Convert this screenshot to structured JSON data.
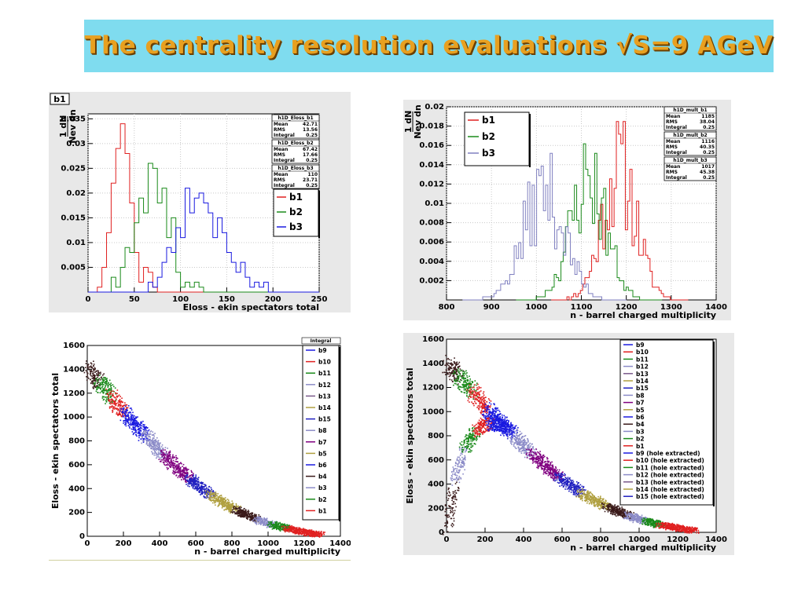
{
  "slide": {
    "title": "The centrality resolution evaluations √S=9 AGeV",
    "colors": {
      "banner_bg": "#7fdcef",
      "title_fill": "#e8a020",
      "title_shadow": "#6b3f00"
    }
  },
  "chart_data": [
    {
      "id": "top-left",
      "type": "step-histogram",
      "tag": "b1",
      "ylabel": "1/Nev dN/dn",
      "xlabel": "Eloss - ekin spectators total",
      "xlim": [
        0,
        250
      ],
      "ylim": [
        0,
        0.036
      ],
      "xticks": [
        0,
        50,
        100,
        150,
        200,
        250
      ],
      "yticks": [
        0.005,
        0.01,
        0.015,
        0.02,
        0.025,
        0.03,
        0.035
      ],
      "grid": true,
      "stats": [
        {
          "title": "h1D_Eloss_b1",
          "rows": [
            [
              "Mean",
              "42.71"
            ],
            [
              "RMS",
              "13.56"
            ],
            [
              "Integral",
              "0.25"
            ]
          ]
        },
        {
          "title": "h1D_Eloss_b2",
          "rows": [
            [
              "Mean",
              "67.42"
            ],
            [
              "RMS",
              "17.66"
            ],
            [
              "Integral",
              "0.25"
            ]
          ]
        },
        {
          "title": "h1D_Eloss_b3",
          "rows": [
            [
              "Mean",
              "110"
            ],
            [
              "RMS",
              "23.71"
            ],
            [
              "Integral",
              "0.25"
            ]
          ]
        }
      ],
      "legend": {
        "position": "right",
        "entries": [
          "b1",
          "b2",
          "b3"
        ]
      },
      "series": [
        {
          "name": "b1",
          "color": "#e02020",
          "bin_width": 5,
          "x0": 0,
          "values": [
            0,
            0,
            0.001,
            0.005,
            0.012,
            0.022,
            0.029,
            0.034,
            0.028,
            0.018,
            0.008,
            0.002,
            0.005,
            0.004,
            0.001,
            0,
            0,
            0,
            0,
            0,
            0,
            0,
            0,
            0,
            0,
            0,
            0,
            0,
            0,
            0,
            0,
            0,
            0,
            0,
            0,
            0,
            0,
            0,
            0,
            0,
            0,
            0,
            0,
            0,
            0,
            0,
            0,
            0,
            0,
            0
          ]
        },
        {
          "name": "b2",
          "color": "#1a8a1a",
          "bin_width": 5,
          "x0": 0,
          "values": [
            0,
            0,
            0,
            0,
            0,
            0.003,
            0.001,
            0.005,
            0.009,
            0.008,
            0.014,
            0.019,
            0.016,
            0.026,
            0.025,
            0.018,
            0.021,
            0.011,
            0.015,
            0.004,
            0.001,
            0.002,
            0.001,
            0.002,
            0.001,
            0,
            0,
            0,
            0,
            0,
            0,
            0,
            0,
            0,
            0,
            0,
            0,
            0,
            0,
            0,
            0,
            0,
            0,
            0,
            0,
            0,
            0,
            0,
            0,
            0
          ]
        },
        {
          "name": "b3",
          "color": "#1a1ae0",
          "bin_width": 5,
          "x0": 0,
          "values": [
            0,
            0,
            0,
            0,
            0,
            0,
            0,
            0,
            0,
            0,
            0,
            0,
            0,
            0.002,
            0.001,
            0.003,
            0.006,
            0.009,
            0.008,
            0.013,
            0.011,
            0.021,
            0.016,
            0.019,
            0.02,
            0.018,
            0.016,
            0.011,
            0.015,
            0.012,
            0.008,
            0.006,
            0.004,
            0.006,
            0.003,
            0.001,
            0.002,
            0.001,
            0.002,
            0,
            0,
            0,
            0,
            0,
            0,
            0,
            0,
            0,
            0,
            0
          ]
        }
      ]
    },
    {
      "id": "top-right",
      "type": "step-histogram",
      "ylabel": "1/Nev dN/dn",
      "xlabel": "n - barrel charged multiplicity",
      "xlim": [
        800,
        1400
      ],
      "ylim": [
        0,
        0.02
      ],
      "xticks": [
        800,
        900,
        1000,
        1100,
        1200,
        1300,
        1400
      ],
      "yticks": [
        0.002,
        0.004,
        0.006,
        0.008,
        0.01,
        0.012,
        0.014,
        0.016,
        0.018,
        0.02
      ],
      "grid": true,
      "stats": [
        {
          "title": "h1D_mult_b1",
          "rows": [
            [
              "Mean",
              "1185"
            ],
            [
              "RMS",
              "38.04"
            ],
            [
              "Integral",
              "0.25"
            ]
          ]
        },
        {
          "title": "h1D_mult_b2",
          "rows": [
            [
              "Mean",
              "1116"
            ],
            [
              "RMS",
              "40.35"
            ],
            [
              "Integral",
              "0.25"
            ]
          ]
        },
        {
          "title": "h1D_mult_b3",
          "rows": [
            [
              "Mean",
              "1017"
            ],
            [
              "RMS",
              "45.38"
            ],
            [
              "Integral",
              "0.25"
            ]
          ]
        }
      ],
      "legend": {
        "position": "top-left",
        "entries": [
          "b1",
          "b2",
          "b3"
        ]
      },
      "series": [
        {
          "name": "b1",
          "color": "#e02020",
          "mean": 1185,
          "sd": 38.04,
          "peak": 0.0135,
          "bin_width": 5,
          "seed": 11
        },
        {
          "name": "b2",
          "color": "#1a8a1a",
          "mean": 1116,
          "sd": 40.35,
          "peak": 0.0125,
          "bin_width": 5,
          "seed": 23
        },
        {
          "name": "b3",
          "color": "#8080c0",
          "mean": 1017,
          "sd": 45.38,
          "peak": 0.0112,
          "bin_width": 5,
          "seed": 37
        }
      ]
    },
    {
      "id": "bottom-left",
      "type": "scatter",
      "ylabel": "Eloss - ekin spectators total",
      "xlabel": "n - barrel charged multiplicity",
      "xlim": [
        0,
        1400
      ],
      "ylim": [
        0,
        1600
      ],
      "xticks": [
        0,
        200,
        400,
        600,
        800,
        1000,
        1200,
        1400
      ],
      "yticks": [
        0,
        200,
        400,
        600,
        800,
        1000,
        1200,
        1400,
        1600
      ],
      "grid": false,
      "corner_label": "Integral",
      "legend": {
        "position": "right",
        "entries": [
          {
            "name": "b9",
            "color": "#1a1ae0"
          },
          {
            "name": "b10",
            "color": "#e02020"
          },
          {
            "name": "b11",
            "color": "#1a8a1a"
          },
          {
            "name": "b12",
            "color": "#8c8cc8"
          },
          {
            "name": "b13",
            "color": "#7a5a8a"
          },
          {
            "name": "b14",
            "color": "#b0a040"
          },
          {
            "name": "b15",
            "color": "#2020c0"
          },
          {
            "name": "b8",
            "color": "#8c8cc8"
          },
          {
            "name": "b7",
            "color": "#800080"
          },
          {
            "name": "b5",
            "color": "#b0a040"
          },
          {
            "name": "b6",
            "color": "#1a1ae0"
          },
          {
            "name": "b4",
            "color": "#3a1a1a"
          },
          {
            "name": "b3",
            "color": "#8c8cc8"
          },
          {
            "name": "b2",
            "color": "#1a8a1a"
          },
          {
            "name": "b1",
            "color": "#e02020"
          }
        ]
      },
      "band": [
        [
          0,
          1400
        ],
        [
          100,
          1230
        ],
        [
          200,
          1040
        ],
        [
          300,
          880
        ],
        [
          400,
          720
        ],
        [
          500,
          570
        ],
        [
          600,
          440
        ],
        [
          700,
          330
        ],
        [
          800,
          240
        ],
        [
          900,
          170
        ],
        [
          1000,
          110
        ],
        [
          1100,
          70
        ],
        [
          1200,
          40
        ],
        [
          1280,
          20
        ]
      ],
      "segments": [
        {
          "from": 0,
          "to": 60,
          "color": "#3a1a1a"
        },
        {
          "from": 60,
          "to": 130,
          "color": "#1a8a1a"
        },
        {
          "from": 130,
          "to": 200,
          "color": "#e02020"
        },
        {
          "from": 200,
          "to": 320,
          "color": "#1a1ae0"
        },
        {
          "from": 320,
          "to": 420,
          "color": "#8c8cc8"
        },
        {
          "from": 420,
          "to": 560,
          "color": "#800080"
        },
        {
          "from": 560,
          "to": 680,
          "color": "#2020c0"
        },
        {
          "from": 680,
          "to": 820,
          "color": "#b0a040"
        },
        {
          "from": 820,
          "to": 940,
          "color": "#3a1a1a"
        },
        {
          "from": 940,
          "to": 1020,
          "color": "#8c8cc8"
        },
        {
          "from": 1020,
          "to": 1100,
          "color": "#1a8a1a"
        },
        {
          "from": 1100,
          "to": 1280,
          "color": "#e02020"
        }
      ]
    },
    {
      "id": "bottom-right",
      "type": "scatter",
      "ylabel": "Eloss - ekin spectators total",
      "xlabel": "n - barrel charged multiplicity",
      "xlim": [
        0,
        1400
      ],
      "ylim": [
        0,
        1600
      ],
      "xticks": [
        0,
        200,
        400,
        600,
        800,
        1000,
        1200,
        1400
      ],
      "yticks": [
        0,
        200,
        400,
        600,
        800,
        1000,
        1200,
        1400,
        1600
      ],
      "grid": false,
      "legend": {
        "position": "top-right",
        "entries": [
          {
            "name": "b9",
            "color": "#1a1ae0"
          },
          {
            "name": "b10",
            "color": "#e02020"
          },
          {
            "name": "b11",
            "color": "#1a8a1a"
          },
          {
            "name": "b12",
            "color": "#8c8cc8"
          },
          {
            "name": "b13",
            "color": "#7a5a8a"
          },
          {
            "name": "b14",
            "color": "#b0a040"
          },
          {
            "name": "b15",
            "color": "#2020c0"
          },
          {
            "name": "b8",
            "color": "#8c8cc8"
          },
          {
            "name": "b7",
            "color": "#800080"
          },
          {
            "name": "b5",
            "color": "#b0a040"
          },
          {
            "name": "b6",
            "color": "#1a1ae0"
          },
          {
            "name": "b4",
            "color": "#3a1a1a"
          },
          {
            "name": "b3",
            "color": "#8c8cc8"
          },
          {
            "name": "b2",
            "color": "#1a8a1a"
          },
          {
            "name": "b1",
            "color": "#e02020"
          },
          {
            "name": "b9 (hole extracted)",
            "color": "#1a1ae0"
          },
          {
            "name": "b10 (hole extracted)",
            "color": "#e02020"
          },
          {
            "name": "b11 (hole extracted)",
            "color": "#1a8a1a"
          },
          {
            "name": "b12 (hole extracted)",
            "color": "#8c8cc8"
          },
          {
            "name": "b13 (hole extracted)",
            "color": "#7a5a8a"
          },
          {
            "name": "b14 (hole extracted)",
            "color": "#b0a040"
          },
          {
            "name": "b15 (hole extracted)",
            "color": "#2020c0"
          }
        ]
      },
      "band": [
        [
          0,
          1400
        ],
        [
          100,
          1230
        ],
        [
          200,
          1040
        ],
        [
          300,
          880
        ],
        [
          400,
          720
        ],
        [
          500,
          570
        ],
        [
          600,
          440
        ],
        [
          700,
          330
        ],
        [
          800,
          240
        ],
        [
          900,
          170
        ],
        [
          1000,
          110
        ],
        [
          1100,
          70
        ],
        [
          1200,
          40
        ],
        [
          1280,
          20
        ]
      ],
      "segments": [
        {
          "from": 0,
          "to": 60,
          "color": "#3a1a1a"
        },
        {
          "from": 60,
          "to": 130,
          "color": "#1a8a1a"
        },
        {
          "from": 130,
          "to": 210,
          "color": "#e02020"
        },
        {
          "from": 210,
          "to": 340,
          "color": "#1a1ae0"
        },
        {
          "from": 340,
          "to": 440,
          "color": "#8c8cc8"
        },
        {
          "from": 440,
          "to": 580,
          "color": "#800080"
        },
        {
          "from": 580,
          "to": 700,
          "color": "#2020c0"
        },
        {
          "from": 700,
          "to": 830,
          "color": "#b0a040"
        },
        {
          "from": 830,
          "to": 940,
          "color": "#3a1a1a"
        },
        {
          "from": 940,
          "to": 1030,
          "color": "#8c8cc8"
        },
        {
          "from": 1030,
          "to": 1110,
          "color": "#1a8a1a"
        },
        {
          "from": 1110,
          "to": 1280,
          "color": "#e02020"
        }
      ],
      "hole_band": [
        [
          0,
          0
        ],
        [
          20,
          250
        ],
        [
          50,
          500
        ],
        [
          90,
          700
        ],
        [
          140,
          830
        ],
        [
          200,
          900
        ],
        [
          260,
          900
        ],
        [
          320,
          860
        ]
      ],
      "hole_segments": [
        {
          "from": 0,
          "to": 40,
          "color": "#3a1a1a"
        },
        {
          "from": 40,
          "to": 90,
          "color": "#8c8cc8"
        },
        {
          "from": 90,
          "to": 150,
          "color": "#1a8a1a"
        },
        {
          "from": 150,
          "to": 220,
          "color": "#e02020"
        },
        {
          "from": 220,
          "to": 330,
          "color": "#1a1ae0"
        }
      ]
    }
  ]
}
